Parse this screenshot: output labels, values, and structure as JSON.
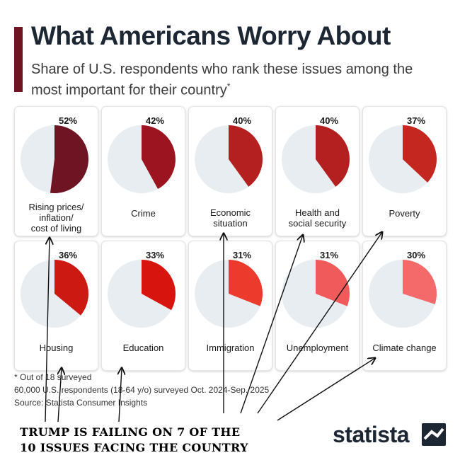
{
  "header": {
    "title": "What Americans Worry About",
    "subtitle": "Share of U.S. respondents who rank these issues among the most important for their country",
    "subtitle_mark": "*"
  },
  "chart_data": {
    "type": "pie",
    "title": "What Americans Worry About",
    "subtitle": "Share of U.S. respondents who rank these issues among the most important for their country*",
    "unit": "%",
    "series": [
      {
        "name": "Rising prices/ inflation/ cost of living",
        "label_lines": "Rising prices/\ninflation/\ncost of living",
        "value": 52,
        "display": "52%",
        "color": "#6e1423"
      },
      {
        "name": "Crime",
        "label_lines": "Crime",
        "value": 42,
        "display": "42%",
        "color": "#9b1420"
      },
      {
        "name": "Economic situation",
        "label_lines": "Economic\nsituation",
        "value": 40,
        "display": "40%",
        "color": "#b3201f"
      },
      {
        "name": "Health and social security",
        "label_lines": "Health and\nsocial security",
        "value": 40,
        "display": "40%",
        "color": "#b3201f"
      },
      {
        "name": "Poverty",
        "label_lines": "Poverty",
        "value": 37,
        "display": "37%",
        "color": "#c42620"
      },
      {
        "name": "Housing",
        "label_lines": "Housing",
        "value": 36,
        "display": "36%",
        "color": "#cc1a12"
      },
      {
        "name": "Education",
        "label_lines": "Education",
        "value": 33,
        "display": "33%",
        "color": "#d8140e"
      },
      {
        "name": "Immigration",
        "label_lines": "Immigration",
        "value": 31,
        "display": "31%",
        "color": "#ec3b2c"
      },
      {
        "name": "Unemployment",
        "label_lines": "Unemployment",
        "value": 31,
        "display": "31%",
        "color": "#f15a5a"
      },
      {
        "name": "Climate change",
        "label_lines": "Climate change",
        "value": 30,
        "display": "30%",
        "color": "#f46a6a"
      }
    ],
    "remainder_color": "#e8edf1"
  },
  "footer": {
    "note": "* Out of 18 surveyed",
    "sample": "60,000 U.S. respondents (18-64 y/o) surveyed Oct. 2024-Sep. 2025",
    "source": "Source: Statista Consumer Insights"
  },
  "annotation": {
    "line1": "TRUMP IS FAILING ON 7 OF THE",
    "line2": "10 ISSUES FACING THE COUNTRY"
  },
  "brand": {
    "name": "statista",
    "icon": "statista-logo-icon"
  }
}
